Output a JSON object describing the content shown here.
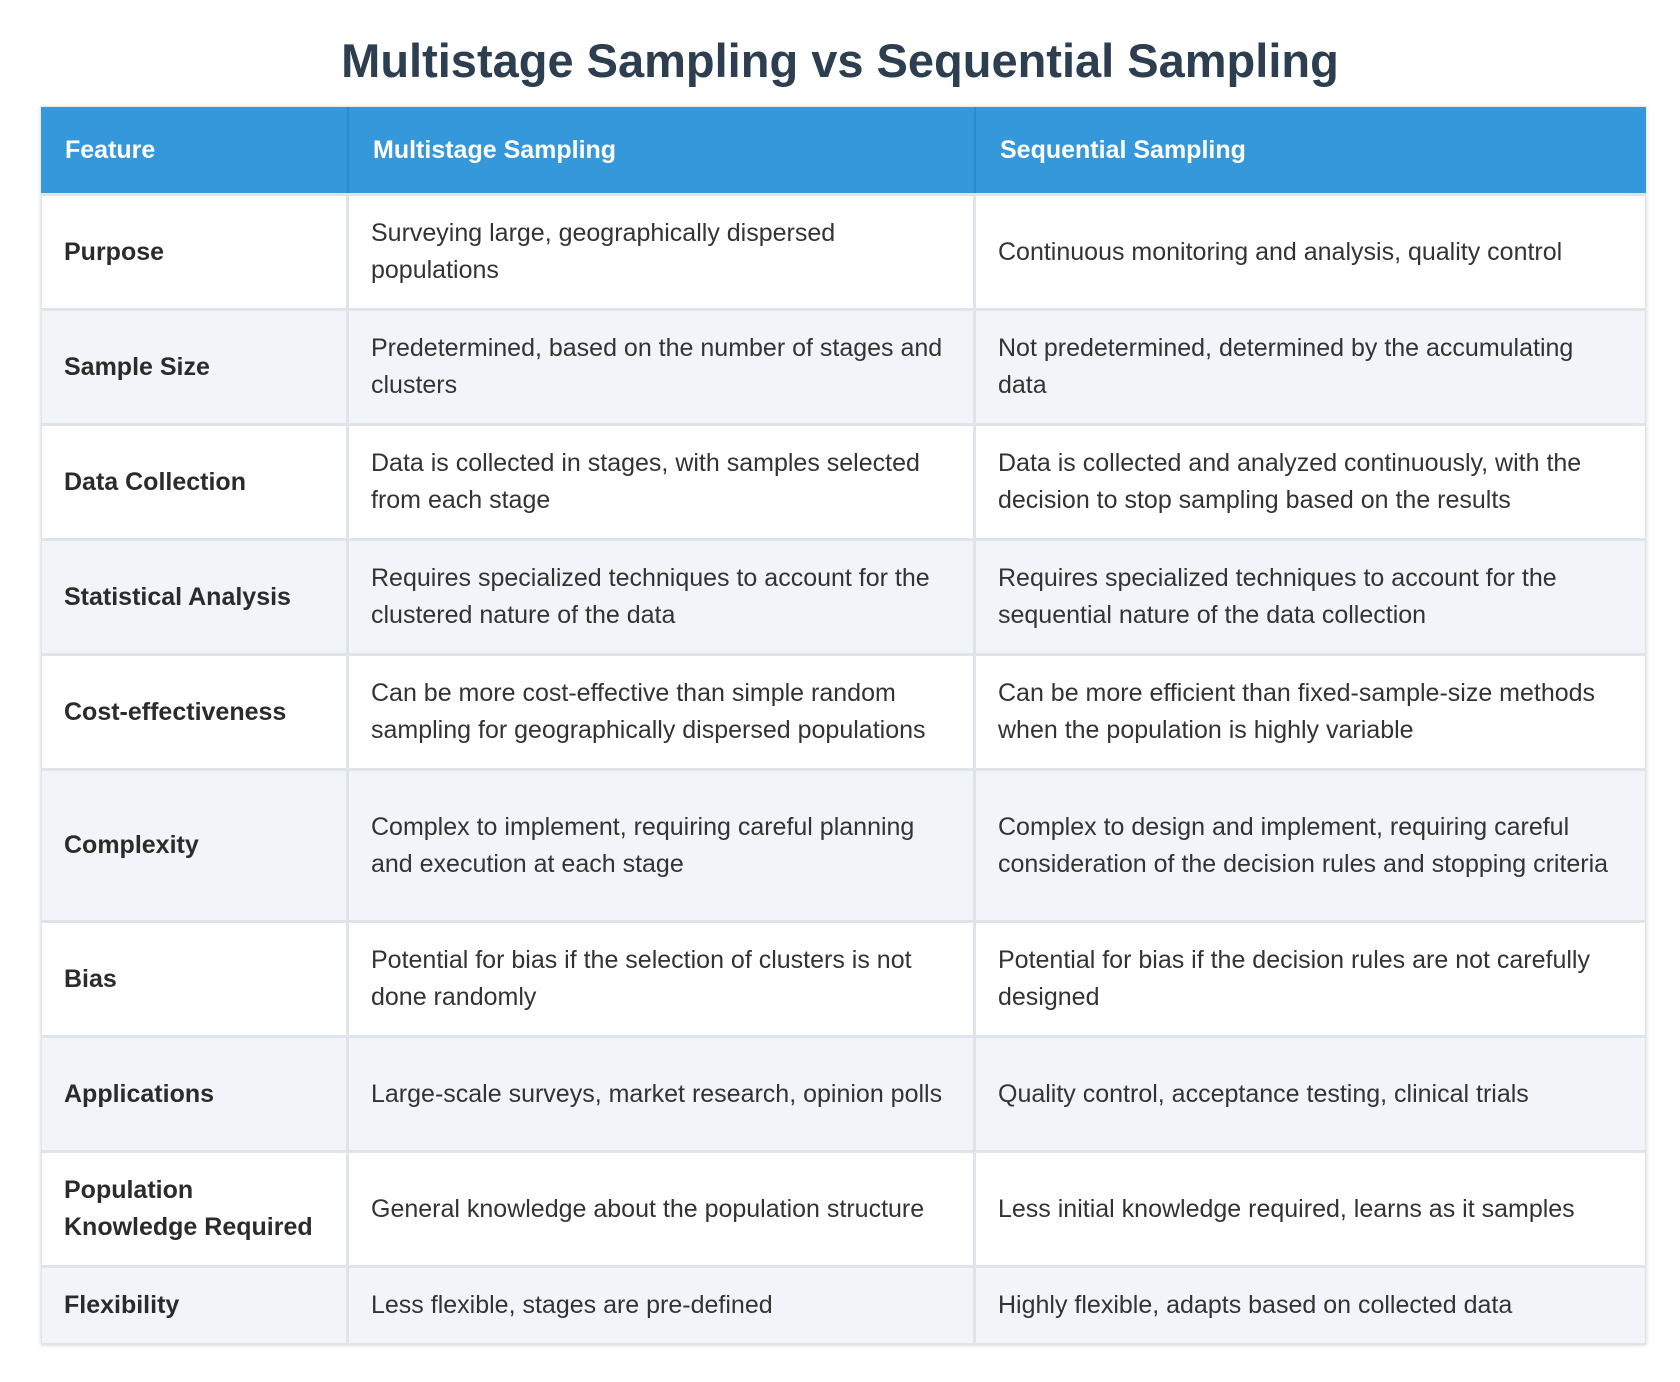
{
  "title": "Multistage Sampling vs Sequential Sampling",
  "colors": {
    "header_bg": "#3498db",
    "title_text": "#2c3e50",
    "row_alt_bg": "#f1f4f8"
  },
  "table": {
    "headers": [
      "Feature",
      "Multistage Sampling",
      "Sequential Sampling"
    ],
    "rows": [
      {
        "feature": "Purpose",
        "multistage": "Surveying large, geographically dispersed populations",
        "sequential": "Continuous monitoring and analysis, quality control"
      },
      {
        "feature": "Sample Size",
        "multistage": "Predetermined, based on the number of stages and clusters",
        "sequential": "Not predetermined, determined by the accumulating data"
      },
      {
        "feature": "Data Collection",
        "multistage": "Data is collected in stages, with samples selected from each stage",
        "sequential": "Data is collected and analyzed continuously, with the decision to stop sampling based on the results"
      },
      {
        "feature": "Statistical Analysis",
        "multistage": "Requires specialized techniques to account for the clustered nature of the data",
        "sequential": "Requires specialized techniques to account for the sequential nature of the data collection"
      },
      {
        "feature": "Cost-effectiveness",
        "multistage": "Can be more cost-effective than simple random sampling for geographically dispersed populations",
        "sequential": "Can be more efficient than fixed-sample-size methods when the population is highly variable"
      },
      {
        "feature": "Complexity",
        "multistage": "Complex to implement, requiring careful planning and execution at each stage",
        "sequential": "Complex to design and implement, requiring careful consideration of the decision rules and stopping criteria"
      },
      {
        "feature": "Bias",
        "multistage": "Potential for bias if the selection of clusters is not done randomly",
        "sequential": "Potential for bias if the decision rules are not carefully designed"
      },
      {
        "feature": "Applications",
        "multistage": "Large-scale surveys, market research, opinion polls",
        "sequential": "Quality control, acceptance testing, clinical trials"
      },
      {
        "feature": "Population Knowledge Required",
        "multistage": "General knowledge about the population structure",
        "sequential": "Less initial knowledge required, learns as it samples"
      },
      {
        "feature": "Flexibility",
        "multistage": "Less flexible, stages are pre-defined",
        "sequential": "Highly flexible, adapts based on collected data"
      }
    ]
  }
}
